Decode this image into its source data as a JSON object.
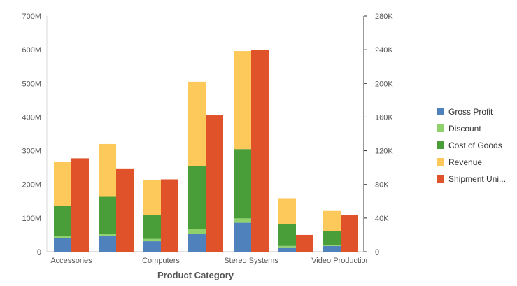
{
  "chart_data": {
    "type": "bar",
    "stacked_left_axis": true,
    "xlabel": "Product Category",
    "categories": [
      "Accessories",
      "",
      "Computers",
      "",
      "Stereo Systems",
      "",
      "Video Production"
    ],
    "left_axis": {
      "min": 0,
      "max": 700,
      "step": 100,
      "tick_labels": [
        "0",
        "100M",
        "200M",
        "300M",
        "400M",
        "500M",
        "600M",
        "700M"
      ],
      "unit": "M"
    },
    "right_axis": {
      "min": 0,
      "max": 280,
      "step": 40,
      "tick_labels": [
        "0",
        "40K",
        "80K",
        "120K",
        "160K",
        "200K",
        "240K",
        "280K"
      ],
      "unit": "K"
    },
    "stacked_series": [
      {
        "name": "Gross Profit",
        "color": "#4f81bd",
        "axis": "left",
        "values": [
          40,
          48,
          31,
          54,
          86,
          13,
          17
        ]
      },
      {
        "name": "Discount",
        "color": "#8fd16a",
        "axis": "left",
        "values": [
          6,
          6,
          7,
          13,
          13,
          4,
          2
        ]
      },
      {
        "name": "Cost of Goods",
        "color": "#4a9e3a",
        "axis": "left",
        "values": [
          90,
          109,
          72,
          188,
          206,
          64,
          42
        ]
      },
      {
        "name": "Revenue",
        "color": "#fdc95a",
        "axis": "left",
        "values": [
          130,
          157,
          103,
          250,
          291,
          78,
          60
        ]
      }
    ],
    "side_series": {
      "name": "Shipment Uni...",
      "color": "#e0522a",
      "axis": "right",
      "values": [
        111,
        99,
        86,
        162,
        240,
        20,
        44
      ]
    },
    "legend": {
      "position": "right",
      "items": [
        {
          "label": "Gross Profit",
          "color": "#4f81bd"
        },
        {
          "label": "Discount",
          "color": "#8fd16a"
        },
        {
          "label": "Cost of Goods",
          "color": "#4a9e3a"
        },
        {
          "label": "Revenue",
          "color": "#fdc95a"
        },
        {
          "label": "Shipment Uni...",
          "color": "#e0522a"
        }
      ]
    },
    "grid": false
  }
}
